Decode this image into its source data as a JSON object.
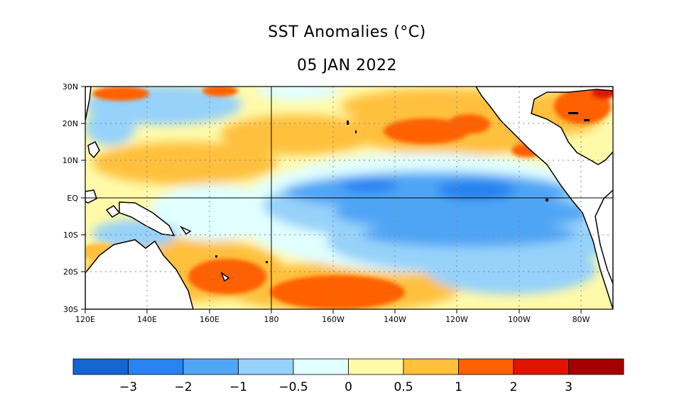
{
  "title": "SST Anomalies (°C)",
  "date": "05 JAN 2022",
  "map": {
    "lon_range": [
      120,
      290
    ],
    "lat_range": [
      -30,
      30
    ],
    "lat_ticks": [
      "30N",
      "20N",
      "10N",
      "EQ",
      "10S",
      "20S",
      "30S"
    ],
    "lon_ticks": [
      "120E",
      "140E",
      "160E",
      "180",
      "160W",
      "140W",
      "120W",
      "100W",
      "80W"
    ],
    "reference_lines": [
      "EQ",
      "180"
    ],
    "grid": "dotted"
  },
  "colorbar": {
    "colors": [
      "#1464d2",
      "#2882f0",
      "#50a5f5",
      "#96d2fa",
      "#e1ffff",
      "#fffaaa",
      "#ffc03c",
      "#ff6000",
      "#e11400",
      "#a50000"
    ],
    "labels": [
      "−3",
      "−2",
      "−1",
      "−0.5",
      "0",
      "0.5",
      "1",
      "2",
      "3"
    ]
  }
}
